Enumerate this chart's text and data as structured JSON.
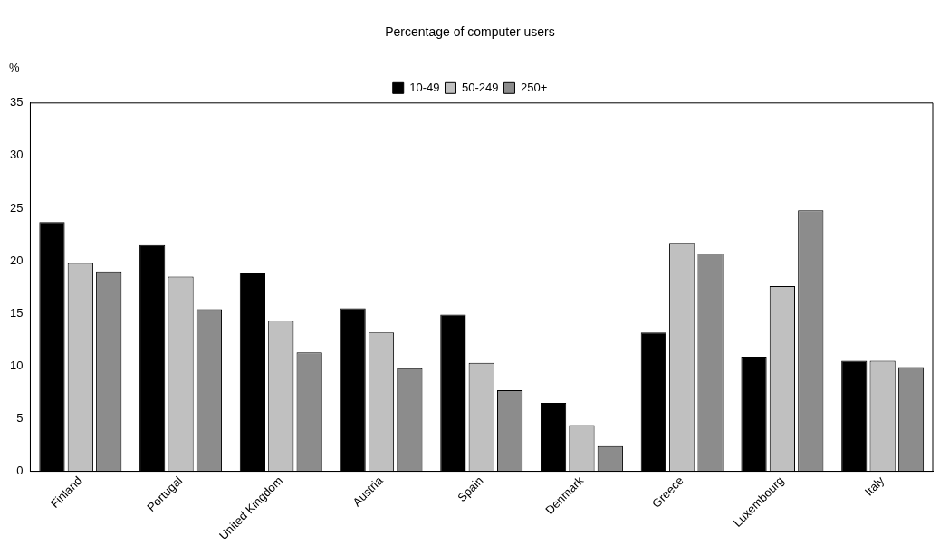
{
  "chart_data": {
    "type": "bar",
    "title": "Percentage of computer users",
    "ylabel": "%",
    "categories": [
      "Finland",
      "Portugal",
      "United Kingdom",
      "Austria",
      "Spain",
      "Denmark",
      "Greece",
      "Luxembourg",
      "Italy"
    ],
    "series": [
      {
        "name": "10-49",
        "color": "#000000",
        "values": [
          23.7,
          21.5,
          18.9,
          15.5,
          14.9,
          6.5,
          13.2,
          10.9,
          10.5
        ]
      },
      {
        "name": "50-249",
        "color": "#c0c0c0",
        "values": [
          19.8,
          18.5,
          14.3,
          13.2,
          10.3,
          4.4,
          21.7,
          17.6,
          10.5
        ]
      },
      {
        "name": "250+",
        "color": "#8c8c8c",
        "values": [
          19.0,
          15.4,
          11.3,
          9.8,
          7.7,
          2.4,
          20.7,
          24.8,
          9.9
        ]
      }
    ],
    "ylim": [
      0,
      35
    ],
    "yticks": [
      0,
      5,
      10,
      15,
      20,
      25,
      30,
      35
    ],
    "grid": false,
    "legend": "top"
  }
}
